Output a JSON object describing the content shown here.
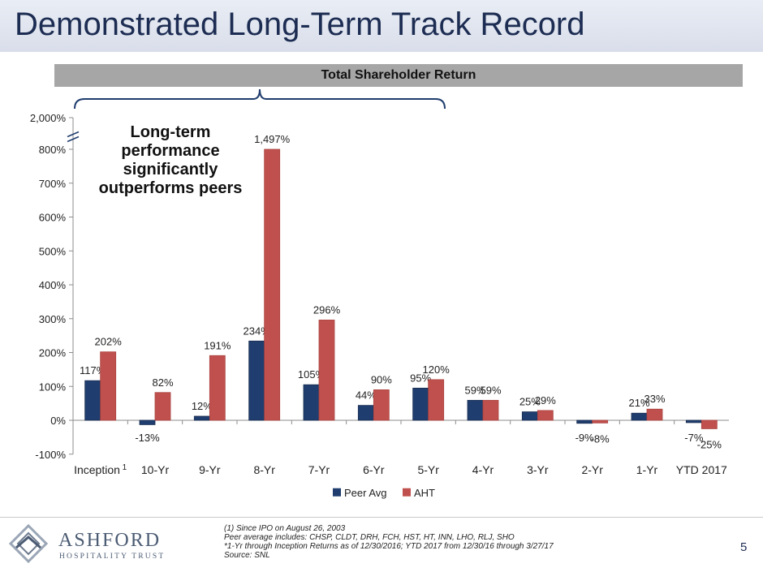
{
  "page": {
    "title": "Demonstrated Long-Term Track Record",
    "subtitle": "Total Shareholder Return",
    "callout": "Long-term performance significantly outperforms peers",
    "page_number": "5",
    "footnotes": [
      "(1) Since IPO on August 26, 2003",
      "Peer average includes:  CHSP, CLDT, DRH, FCH, HST, HT, INN, LHO, RLJ, SHO",
      "*1-Yr through Inception Returns as of 12/30/2016; YTD 2017 from 12/30/16 through 3/27/17",
      "Source: SNL"
    ],
    "logo": {
      "name": "ASHFORD",
      "sub": "HOSPITALITY TRUST"
    }
  },
  "chart_data": {
    "type": "bar",
    "categories": [
      "Inception",
      "10-Yr",
      "9-Yr",
      "8-Yr",
      "7-Yr",
      "6-Yr",
      "5-Yr",
      "4-Yr",
      "3-Yr",
      "2-Yr",
      "1-Yr",
      "YTD 2017"
    ],
    "category_superscript": {
      "Inception": "1"
    },
    "series": [
      {
        "name": "Peer Avg",
        "color": "#1f3d6e",
        "values": [
          117,
          -13,
          12,
          234,
          105,
          44,
          95,
          59,
          25,
          -9,
          21,
          -7
        ]
      },
      {
        "name": "AHT",
        "color": "#c0504d",
        "values": [
          202,
          82,
          191,
          1497,
          296,
          90,
          120,
          59,
          29,
          -8,
          33,
          -25
        ]
      }
    ],
    "value_labels": {
      "Peer Avg": [
        "117%",
        "-13%",
        "12%",
        "234%",
        "105%",
        "44%",
        "95%",
        "59%",
        "25%",
        "-9%",
        "21%",
        "-7%"
      ],
      "AHT": [
        "202%",
        "82%",
        "191%",
        "1,497%",
        "296%",
        "90%",
        "120%",
        "59%",
        "29%",
        "-8%",
        "33%",
        "-25%"
      ]
    },
    "yticks": [
      "-100%",
      "0%",
      "100%",
      "200%",
      "300%",
      "400%",
      "500%",
      "600%",
      "700%",
      "800%",
      "2,000%"
    ],
    "ylim": [
      -100,
      800
    ],
    "axis_break": {
      "from": 800,
      "to": 2000
    },
    "gridlines": false,
    "legend": "bottom-center"
  }
}
